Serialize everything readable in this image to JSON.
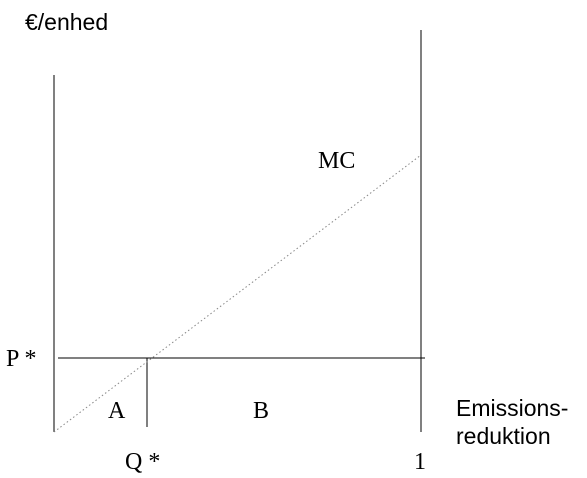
{
  "diagram": {
    "y_axis_label": "€/enhed",
    "x_axis_label_line1": "Emissions-",
    "x_axis_label_line2": "reduktion",
    "curve_label": "MC",
    "price_label": "P *",
    "quantity_label": "Q *",
    "end_label": "1",
    "area_a_label": "A",
    "area_b_label": "B"
  },
  "colors": {
    "ink": "#000000",
    "curve": "#888888",
    "background": "#ffffff"
  }
}
